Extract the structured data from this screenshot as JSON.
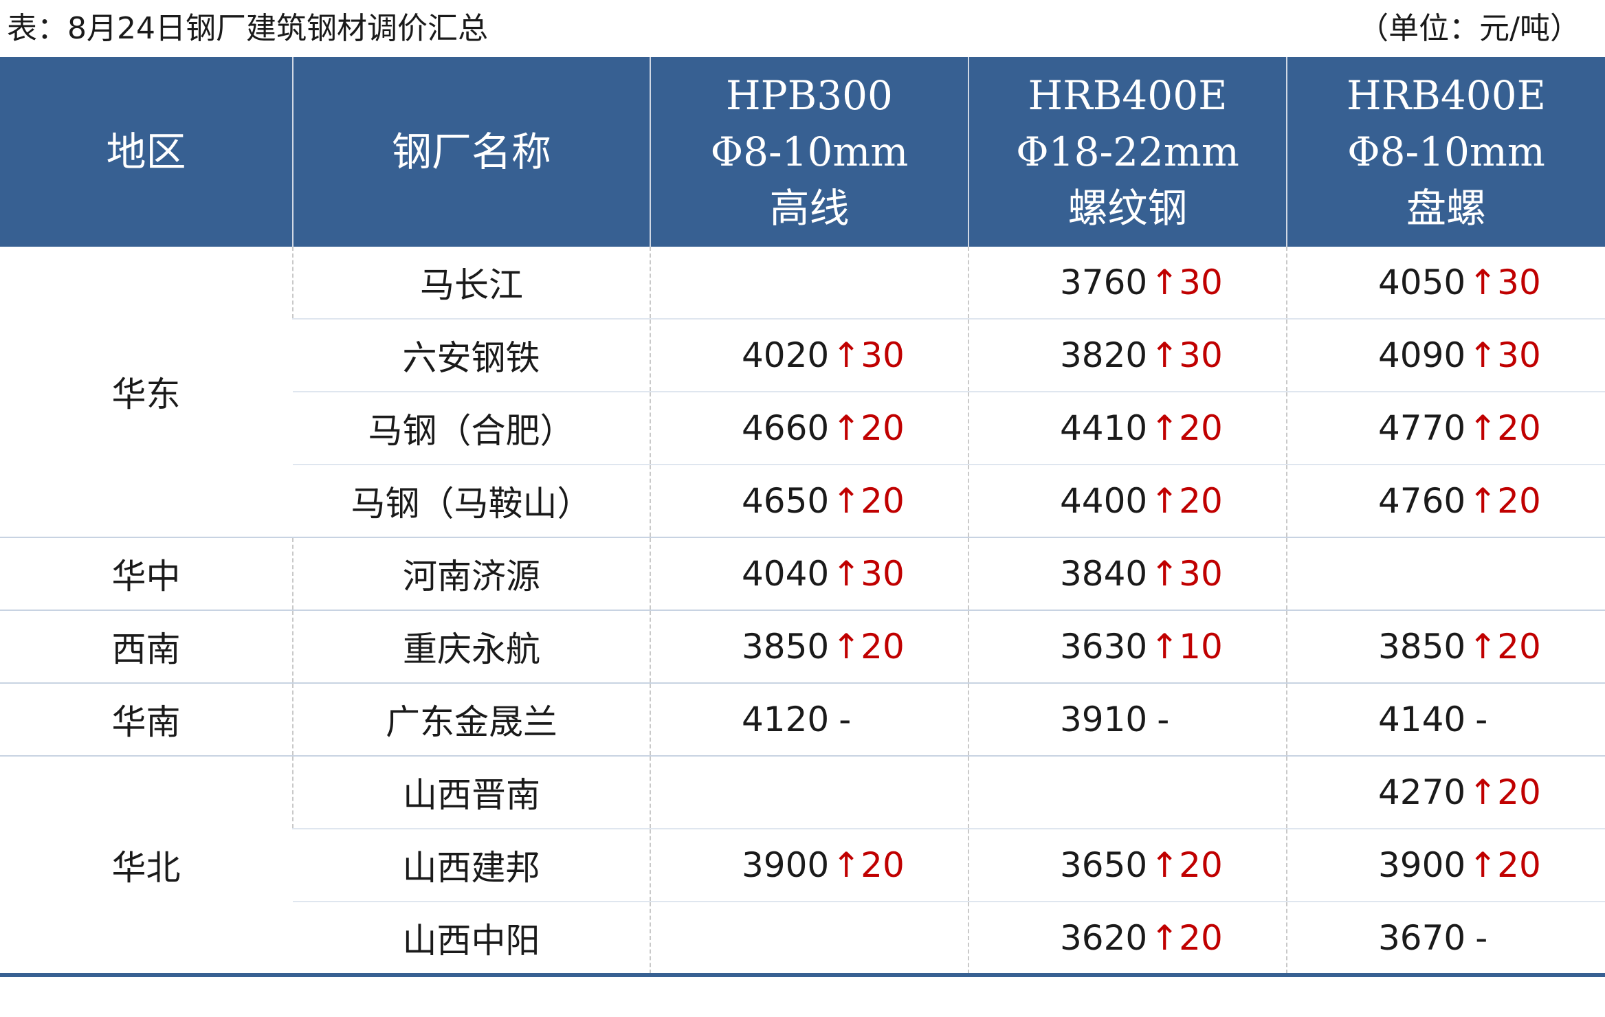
{
  "caption": {
    "title": "表：8月24日钢厂建筑钢材调价汇总",
    "unit": "（单位：元/吨）"
  },
  "headers": {
    "region": "地区",
    "mill": "钢厂名称",
    "col1": [
      "HPB300",
      "Φ8-10mm",
      "高线"
    ],
    "col2": [
      "HRB400E",
      "Φ18-22mm",
      "螺纹钢"
    ],
    "col3": [
      "HRB400E",
      "Φ8-10mm",
      "盘螺"
    ]
  },
  "regions": [
    {
      "name": "华东",
      "rows": [
        {
          "mill": "马长江",
          "prices": [
            null,
            {
              "value": "3760",
              "arrow": "↑",
              "change": "30"
            },
            {
              "value": "4050",
              "arrow": "↑",
              "change": "30"
            }
          ]
        },
        {
          "mill": "六安钢铁",
          "prices": [
            {
              "value": "4020",
              "arrow": "↑",
              "change": "30"
            },
            {
              "value": "3820",
              "arrow": "↑",
              "change": "30"
            },
            {
              "value": "4090",
              "arrow": "↑",
              "change": "30"
            }
          ]
        },
        {
          "mill": "马钢（合肥）",
          "prices": [
            {
              "value": "4660",
              "arrow": "↑",
              "change": "20"
            },
            {
              "value": "4410",
              "arrow": "↑",
              "change": "20"
            },
            {
              "value": "4770",
              "arrow": "↑",
              "change": "20"
            }
          ]
        },
        {
          "mill": "马钢（马鞍山）",
          "prices": [
            {
              "value": "4650",
              "arrow": "↑",
              "change": "20"
            },
            {
              "value": "4400",
              "arrow": "↑",
              "change": "20"
            },
            {
              "value": "4760",
              "arrow": "↑",
              "change": "20"
            }
          ]
        }
      ]
    },
    {
      "name": "华中",
      "rows": [
        {
          "mill": "河南济源",
          "prices": [
            {
              "value": "4040",
              "arrow": "↑",
              "change": "30"
            },
            {
              "value": "3840",
              "arrow": "↑",
              "change": "30"
            },
            null
          ]
        }
      ]
    },
    {
      "name": "西南",
      "rows": [
        {
          "mill": "重庆永航",
          "prices": [
            {
              "value": "3850",
              "arrow": "↑",
              "change": "20"
            },
            {
              "value": "3630",
              "arrow": "↑",
              "change": "10"
            },
            {
              "value": "3850",
              "arrow": "↑",
              "change": "20"
            }
          ]
        }
      ]
    },
    {
      "name": "华南",
      "rows": [
        {
          "mill": "广东金晟兰",
          "prices": [
            {
              "value": "4120",
              "flat": "-"
            },
            {
              "value": "3910",
              "flat": "-"
            },
            {
              "value": "4140",
              "flat": "-"
            }
          ]
        }
      ]
    },
    {
      "name": "华北",
      "rows": [
        {
          "mill": "山西晋南",
          "prices": [
            null,
            null,
            {
              "value": "4270",
              "arrow": "↑",
              "change": "20"
            }
          ]
        },
        {
          "mill": "山西建邦",
          "prices": [
            {
              "value": "3900",
              "arrow": "↑",
              "change": "20"
            },
            {
              "value": "3650",
              "arrow": "↑",
              "change": "20"
            },
            {
              "value": "3900",
              "arrow": "↑",
              "change": "20"
            }
          ]
        },
        {
          "mill": "山西中阳",
          "prices": [
            null,
            {
              "value": "3620",
              "arrow": "↑",
              "change": "20"
            },
            {
              "value": "3670",
              "flat": "-"
            }
          ]
        }
      ]
    }
  ],
  "colors": {
    "header_bg": "#376092",
    "header_text": "#ffffff",
    "increase": "#c00000"
  }
}
